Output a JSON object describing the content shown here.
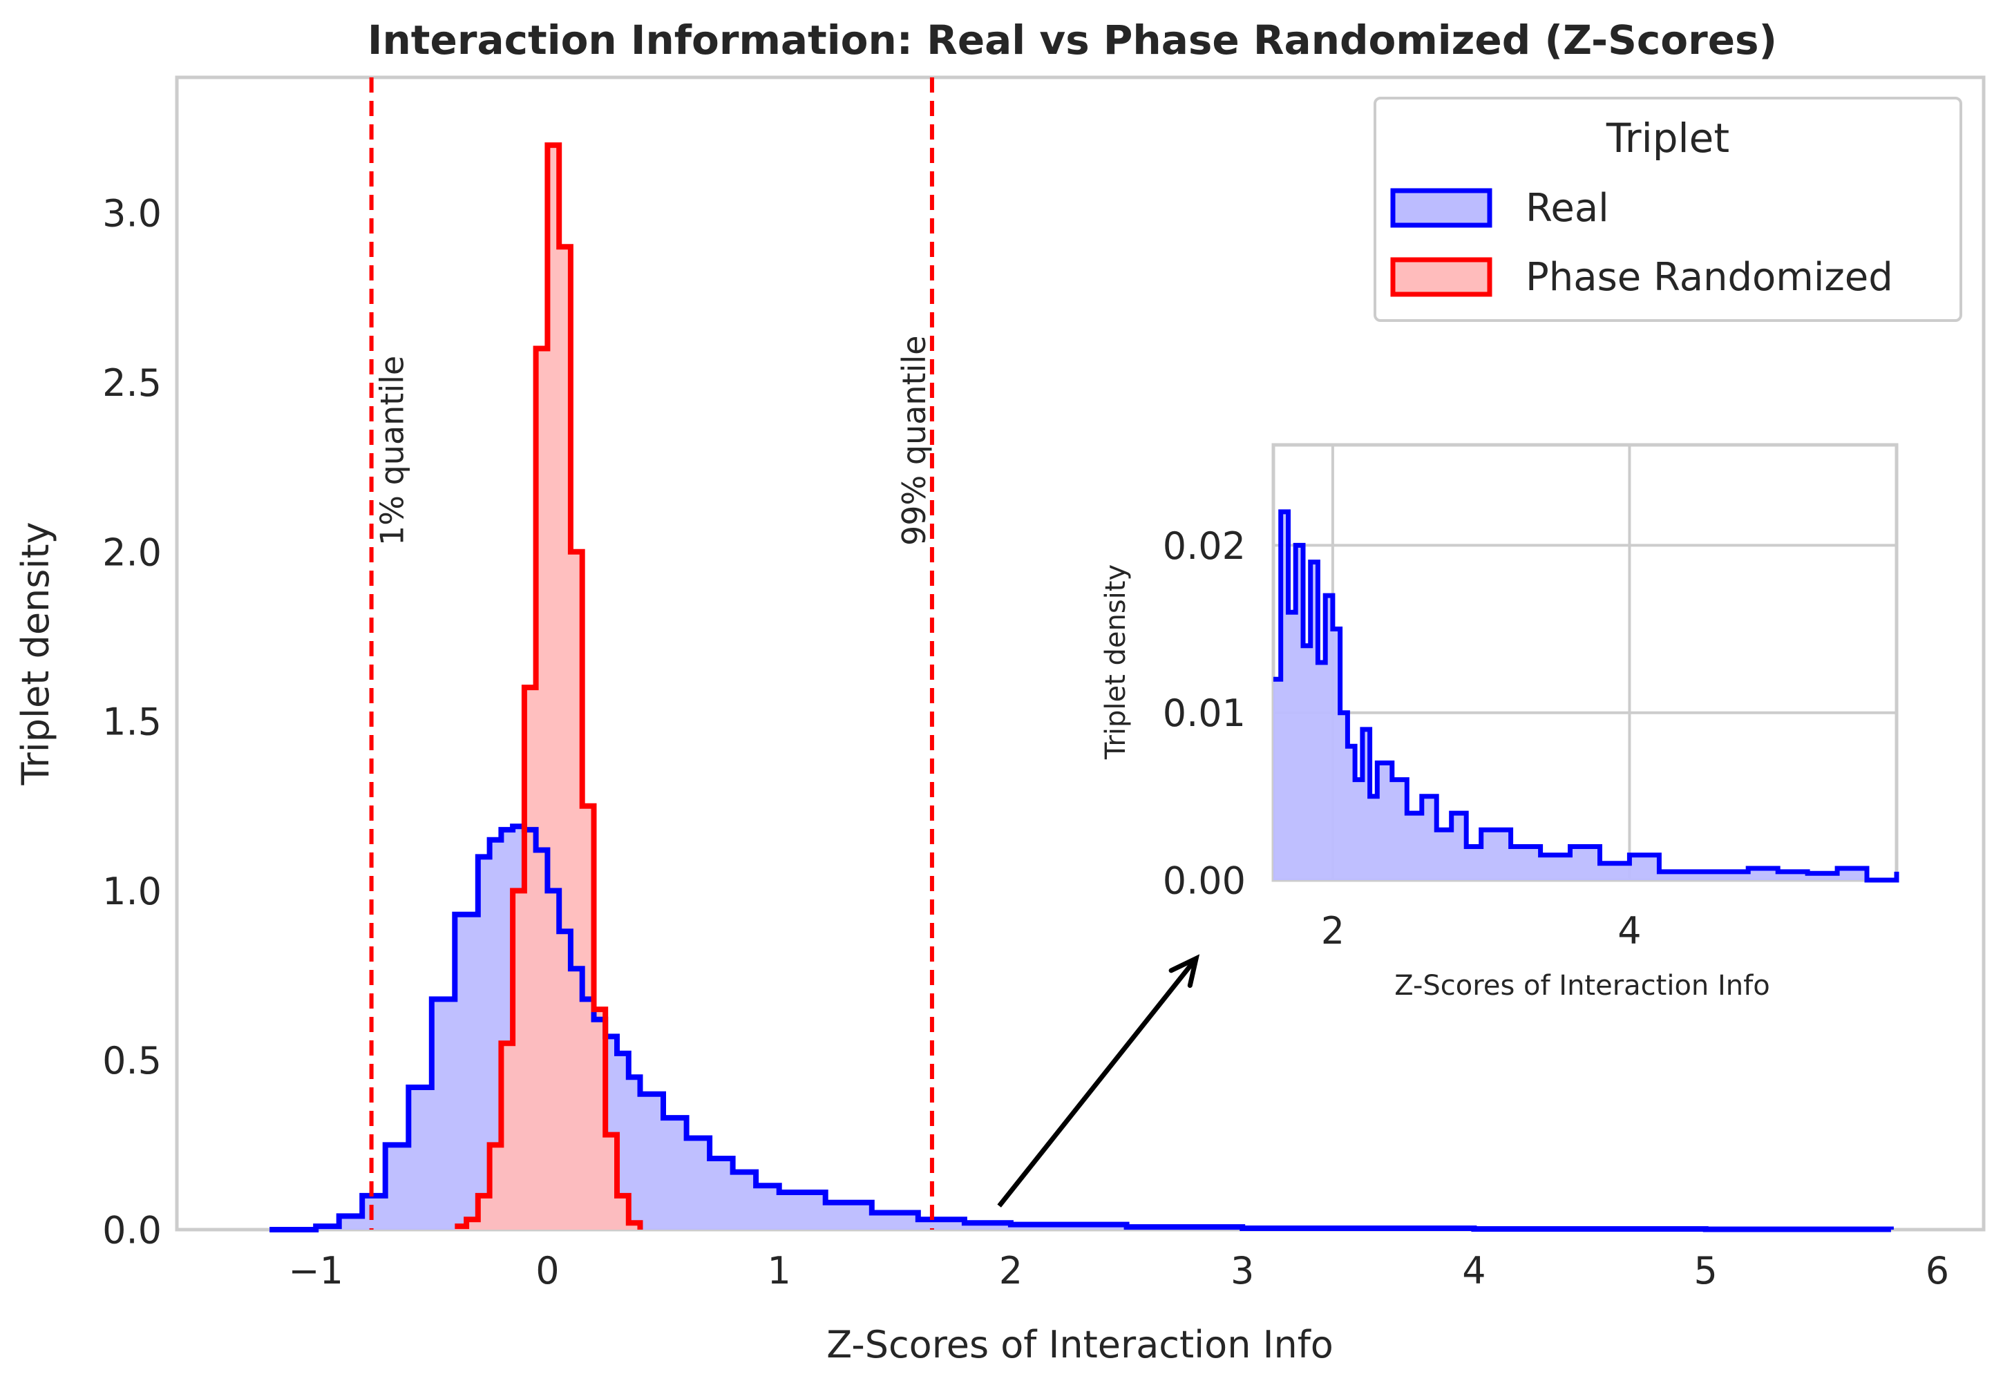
{
  "chart_data": [
    {
      "type": "histogram",
      "title": "Interaction Information: Real vs Phase Randomized (Z-Scores)",
      "xlabel": "Z-Scores of Interaction Info",
      "ylabel": "Triplet density",
      "xlim": [
        -1.6,
        6.2
      ],
      "ylim": [
        0,
        3.4
      ],
      "xticks": [
        -1,
        0,
        1,
        2,
        3,
        4,
        5,
        6
      ],
      "xtick_labels": [
        "−1",
        "0",
        "1",
        "2",
        "3",
        "4",
        "5",
        "6"
      ],
      "yticks": [
        0,
        0.5,
        1,
        1.5,
        2,
        2.5,
        3
      ],
      "ytick_labels": [
        "0.0",
        "0.5",
        "1.0",
        "1.5",
        "2.0",
        "2.5",
        "3.0"
      ],
      "grid": false,
      "legend": {
        "title": "Triplet",
        "placement": "top-right",
        "entries": [
          "Real",
          "Phase Randomized"
        ]
      },
      "series": [
        {
          "name": "Real",
          "color": "#0000ff",
          "fill": "#bcbcff",
          "x": [
            -1.2,
            -1.0,
            -0.9,
            -0.8,
            -0.7,
            -0.6,
            -0.5,
            -0.4,
            -0.3,
            -0.25,
            -0.2,
            -0.15,
            -0.1,
            -0.05,
            0.0,
            0.05,
            0.1,
            0.15,
            0.2,
            0.25,
            0.3,
            0.35,
            0.4,
            0.5,
            0.6,
            0.7,
            0.8,
            0.9,
            1.0,
            1.2,
            1.4,
            1.6,
            1.8,
            2.0,
            2.5,
            3.0,
            4.0,
            5.0,
            5.8
          ],
          "values": [
            0.0,
            0.01,
            0.04,
            0.1,
            0.25,
            0.42,
            0.68,
            0.93,
            1.1,
            1.15,
            1.18,
            1.19,
            1.18,
            1.12,
            1.0,
            0.88,
            0.77,
            0.68,
            0.62,
            0.57,
            0.52,
            0.45,
            0.4,
            0.33,
            0.27,
            0.21,
            0.17,
            0.13,
            0.11,
            0.08,
            0.05,
            0.03,
            0.02,
            0.015,
            0.008,
            0.004,
            0.002,
            0.001,
            0.0
          ]
        },
        {
          "name": "Phase Randomized",
          "color": "#ff0000",
          "fill": "#ffbcbc",
          "x": [
            -0.4,
            -0.35,
            -0.3,
            -0.25,
            -0.2,
            -0.15,
            -0.1,
            -0.05,
            0.0,
            0.05,
            0.1,
            0.15,
            0.2,
            0.25,
            0.3,
            0.35,
            0.4
          ],
          "values": [
            0.01,
            0.03,
            0.1,
            0.25,
            0.55,
            1.0,
            1.6,
            2.6,
            3.2,
            2.9,
            2.0,
            1.25,
            0.65,
            0.28,
            0.1,
            0.02,
            0.0
          ]
        }
      ],
      "reference_lines": [
        {
          "x": -0.76,
          "label": "1% quantile",
          "color": "#ff0000",
          "style": "dashed"
        },
        {
          "x": 1.66,
          "label": "99% quantile",
          "color": "#ff0000",
          "style": "dashed"
        }
      ],
      "annotation": {
        "type": "arrow",
        "from": [
          1.95,
          0.07
        ],
        "to": [
          2.8,
          0.8
        ]
      }
    },
    {
      "type": "histogram",
      "role": "inset",
      "xlabel": "Z-Scores of Interaction Info",
      "ylabel": "Triplet density",
      "xlim": [
        1.6,
        5.8
      ],
      "ylim": [
        0,
        0.026
      ],
      "xticks": [
        2,
        4
      ],
      "xtick_labels": [
        "2",
        "4"
      ],
      "yticks": [
        0,
        0.01,
        0.02
      ],
      "ytick_labels": [
        "0.00",
        "0.01",
        "0.02"
      ],
      "grid": true,
      "series": [
        {
          "name": "Real",
          "color": "#0000ff",
          "fill": "#bcbcff",
          "x": [
            1.6,
            1.65,
            1.7,
            1.75,
            1.8,
            1.85,
            1.9,
            1.95,
            2.0,
            2.05,
            2.1,
            2.15,
            2.2,
            2.25,
            2.3,
            2.4,
            2.5,
            2.6,
            2.7,
            2.8,
            2.9,
            3.0,
            3.2,
            3.4,
            3.6,
            3.8,
            4.0,
            4.2,
            4.5,
            4.8,
            5.0,
            5.2,
            5.4,
            5.6,
            5.8
          ],
          "values": [
            0.012,
            0.022,
            0.016,
            0.02,
            0.014,
            0.019,
            0.013,
            0.017,
            0.015,
            0.01,
            0.008,
            0.006,
            0.009,
            0.005,
            0.007,
            0.006,
            0.004,
            0.005,
            0.003,
            0.004,
            0.002,
            0.003,
            0.002,
            0.0015,
            0.002,
            0.001,
            0.0015,
            0.0005,
            0.0005,
            0.0007,
            0.0005,
            0.0004,
            0.0007,
            0.0,
            0.0005
          ]
        }
      ]
    }
  ]
}
